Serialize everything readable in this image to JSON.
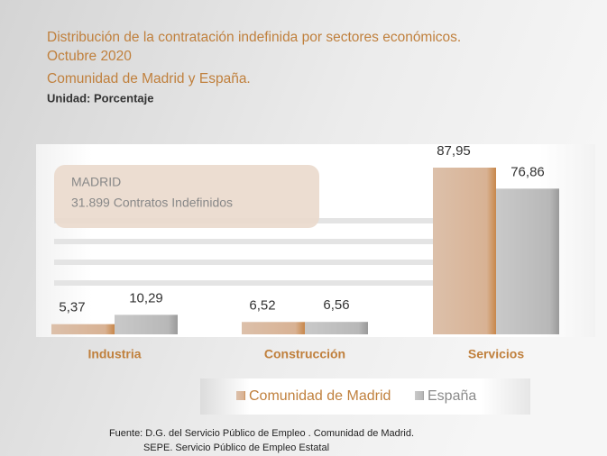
{
  "chart_data": {
    "type": "bar",
    "title_lines": [
      "Distribución de la contratación indefinida por sectores económicos.",
      "Octubre 2020",
      "Comunidad de Madrid y España."
    ],
    "unit": "Unidad: Porcentaje",
    "annotation": [
      "MADRID",
      "31.899 Contratos  Indefinidos"
    ],
    "categories": [
      "Industria",
      "Construcción",
      "Servicios"
    ],
    "series": [
      {
        "name": "Comunidad de Madrid",
        "color": "#c8874a",
        "values": [
          5.37,
          6.52,
          87.95
        ],
        "value_labels": [
          "5,37",
          "6,52",
          "87,95"
        ]
      },
      {
        "name": "España",
        "color": "#9a9a9a",
        "values": [
          10.29,
          6.56,
          76.86
        ],
        "value_labels": [
          "10,29",
          "6,56",
          "76,86"
        ]
      }
    ],
    "source": [
      "Fuente: D.G. del Servicio Público de Empleo . Comunidad de  Madrid.",
      "SEPE. Servicio Público de Empleo Estatal"
    ]
  }
}
